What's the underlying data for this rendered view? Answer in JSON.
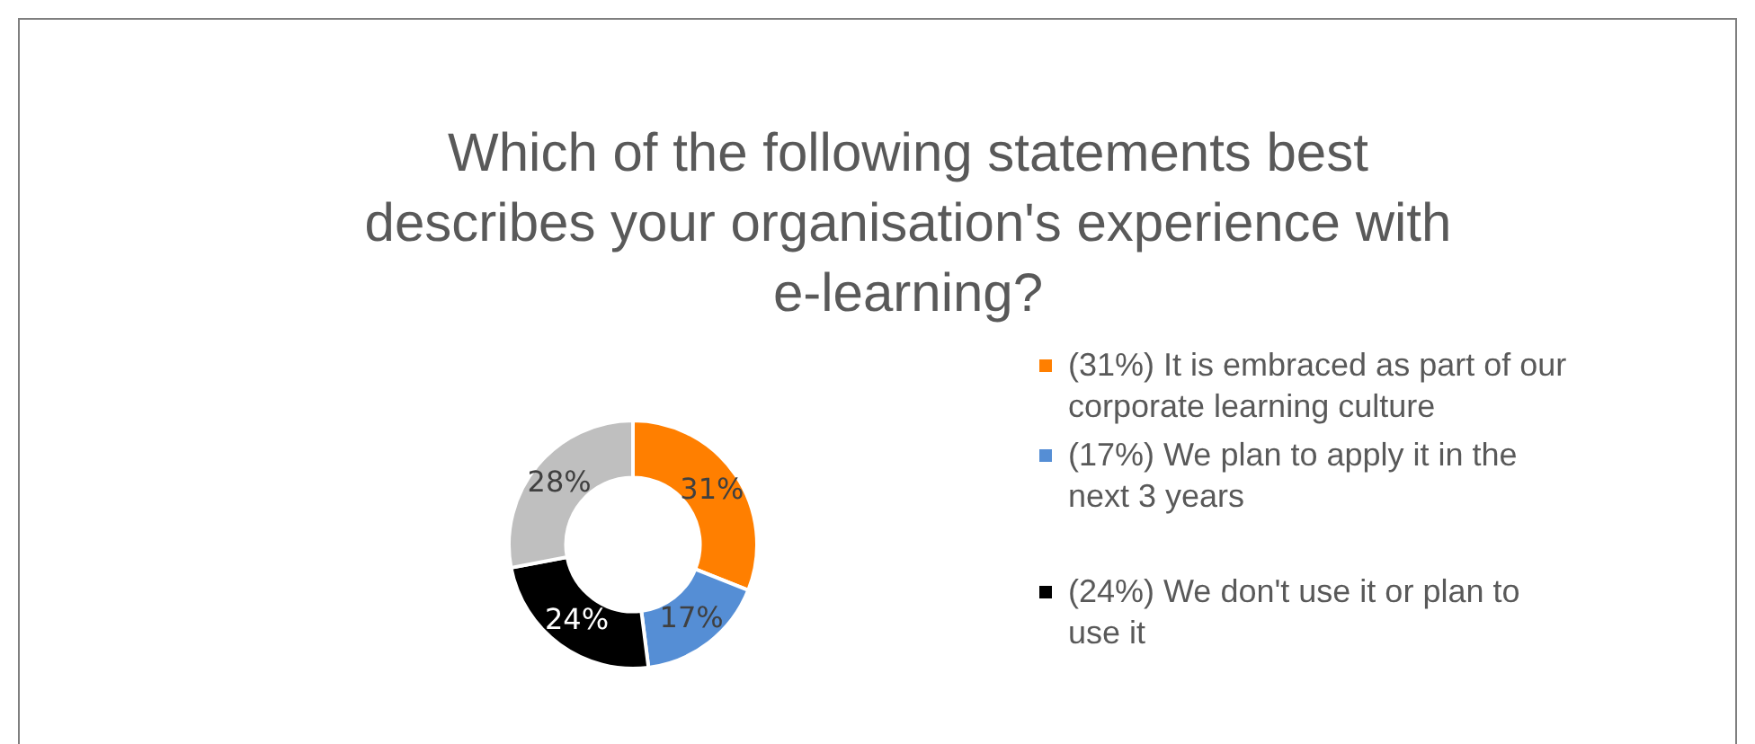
{
  "chart_data": {
    "type": "donut",
    "title": "Which of the following statements best describes your organisation's experience with e-learning?",
    "categories": [
      "(31%) It is embraced as part of our corporate learning culture",
      "(17%) We plan to apply it in the next 3 years",
      "(24%) We don't use it or plan to use it",
      null
    ],
    "values": [
      31,
      17,
      24,
      28
    ],
    "colors": [
      "#ff7f00",
      "#558ed5",
      "#000000",
      "#bfbfbf"
    ],
    "value_labels": [
      "31%",
      "17%",
      "24%",
      "28%"
    ],
    "legend": "right"
  }
}
